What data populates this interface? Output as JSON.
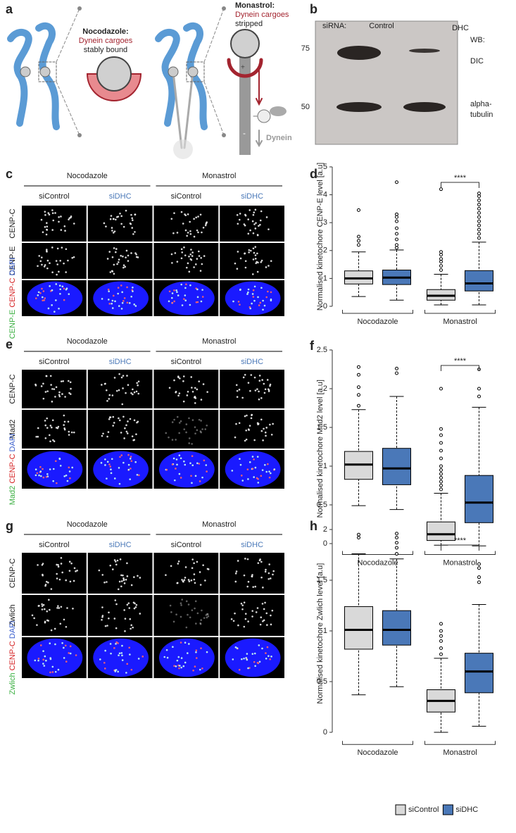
{
  "figure": {
    "panel_labels": [
      "a",
      "b",
      "c",
      "d",
      "e",
      "f",
      "g",
      "h"
    ],
    "diagram": {
      "nocodazole": "Nocodazole:",
      "noco_cargo": "Dynein cargoes",
      "noco_state": "stably bound",
      "monastrol": "Monastrol:",
      "mona_cargo": "Dynein cargoes",
      "mona_state": "stripped",
      "plus": "+",
      "minus": "-",
      "dynein": "Dynein"
    },
    "blot": {
      "sirna": "siRNA:",
      "lanes": [
        "Control",
        "DHC"
      ],
      "markers": [
        "75",
        "50"
      ],
      "wb": "WB:",
      "bands": [
        "DIC",
        "alpha-",
        "tubulin"
      ]
    },
    "imaging": [
      {
        "groups": [
          "Nocodazole",
          "Monastrol"
        ],
        "conditions": [
          "siControl",
          "siDHC",
          "siControl",
          "siDHC"
        ],
        "rows": [
          "CENP-C",
          "CENP-E"
        ],
        "merge": [
          "CENP-E",
          "CENP-C",
          "DAPI"
        ]
      },
      {
        "groups": [
          "Nocodazole",
          "Monastrol"
        ],
        "conditions": [
          "siControl",
          "siDHC",
          "siControl",
          "siDHC"
        ],
        "rows": [
          "CENP-C",
          "Mad2"
        ],
        "merge": [
          "Mad2",
          "CENP-C",
          "DAPI"
        ]
      },
      {
        "groups": [
          "Nocodazole",
          "Monastrol"
        ],
        "conditions": [
          "siControl",
          "siDHC",
          "siControl",
          "siDHC"
        ],
        "rows": [
          "CENP-C",
          "Zwlich"
        ],
        "merge": [
          "Zwlich",
          "CENP-C",
          "DAPI"
        ]
      }
    ]
  },
  "chart_data": [
    {
      "type": "box",
      "ylabel": "Normalised kinetochore CENP-E level [a.u]",
      "categories": [
        "Nocodazole",
        "Monastrol"
      ],
      "ylim": [
        0,
        5
      ],
      "yticks": [
        0,
        1,
        2,
        3,
        4,
        5
      ],
      "annotation": "****",
      "series": [
        {
          "color": "#d9d9d9",
          "whisker_low": [
            0.35,
            0.05
          ],
          "q1": [
            0.8,
            0.22
          ],
          "median": [
            1.0,
            0.38
          ],
          "q3": [
            1.27,
            0.6
          ],
          "whisker_high": [
            1.95,
            1.15
          ],
          "outliers": [
            [
              2.2,
              2.35,
              2.5,
              3.45
            ],
            [
              1.3,
              1.45,
              1.6,
              1.7,
              1.85,
              1.95,
              4.2
            ]
          ]
        },
        {
          "color": "#4a78b8",
          "whisker_low": [
            0.22,
            0.05
          ],
          "q1": [
            0.78,
            0.55
          ],
          "median": [
            1.03,
            0.82
          ],
          "q3": [
            1.3,
            1.28
          ],
          "whisker_high": [
            2.02,
            2.3
          ],
          "outliers": [
            [
              2.1,
              2.2,
              2.4,
              2.6,
              2.8,
              3.05,
              3.2,
              3.3,
              4.45
            ],
            [
              2.45,
              2.6,
              2.75,
              2.9,
              3.05,
              3.2,
              3.35,
              3.5,
              3.65,
              3.8,
              3.95,
              4.05
            ]
          ]
        }
      ]
    },
    {
      "type": "box",
      "ylabel": "Normalised kinetochore Mad2 level [a.u]",
      "categories": [
        "Nocodazole",
        "Monastrol"
      ],
      "ylim": [
        -0.05,
        2.5
      ],
      "yticks": [
        0,
        0.5,
        1,
        1.5,
        2,
        2.5
      ],
      "annotation": "****",
      "series": [
        {
          "color": "#d9d9d9",
          "whisker_low": [
            0.49,
            -0.02
          ],
          "q1": [
            0.83,
            0.04
          ],
          "median": [
            1.02,
            0.12
          ],
          "q3": [
            1.19,
            0.28
          ],
          "whisker_high": [
            1.73,
            0.65
          ],
          "outliers": [
            [
              1.78,
              1.92,
              2.02,
              2.18,
              2.28
            ],
            [
              0.7,
              0.75,
              0.8,
              0.85,
              0.9,
              0.95,
              1.0,
              1.1,
              1.2,
              1.3,
              1.4,
              1.48,
              2.0
            ]
          ]
        },
        {
          "color": "#4a78b8",
          "whisker_low": [
            0.44,
            -0.03
          ],
          "q1": [
            0.76,
            0.27
          ],
          "median": [
            0.97,
            0.53
          ],
          "q3": [
            1.23,
            0.88
          ],
          "whisker_high": [
            1.9,
            1.76
          ],
          "outliers": [
            [
              2.2,
              2.26
            ],
            [
              1.9,
              2.0,
              2.25
            ]
          ]
        }
      ]
    },
    {
      "type": "box",
      "ylabel": "Normalised kinetochore Zwlich level [a.u]",
      "categories": [
        "Nocodazole",
        "Monastrol"
      ],
      "ylim": [
        -0.05,
        2
      ],
      "yticks": [
        0,
        0.5,
        1,
        1.5,
        2
      ],
      "annotation": "****",
      "legend": "bottom",
      "series": [
        {
          "name": "siControl",
          "color": "#d9d9d9",
          "whisker_low": [
            0.37,
            0.0
          ],
          "q1": [
            0.82,
            0.2
          ],
          "median": [
            1.01,
            0.31
          ],
          "q3": [
            1.24,
            0.42
          ],
          "whisker_high": [
            1.76,
            0.73
          ],
          "outliers": [
            [
              1.92,
              1.95
            ],
            [
              0.77,
              0.83,
              0.9,
              0.95,
              1.0,
              1.07
            ]
          ]
        },
        {
          "name": "siDHC",
          "color": "#4a78b8",
          "whisker_low": [
            0.45,
            0.06
          ],
          "q1": [
            0.86,
            0.39
          ],
          "median": [
            1.01,
            0.6
          ],
          "q3": [
            1.2,
            0.78
          ],
          "whisker_high": [
            1.71,
            1.26
          ],
          "outliers": [
            [
              1.76,
              1.82,
              1.87,
              1.92,
              1.96
            ],
            [
              1.48,
              1.53,
              1.62,
              1.66
            ]
          ]
        }
      ]
    }
  ]
}
